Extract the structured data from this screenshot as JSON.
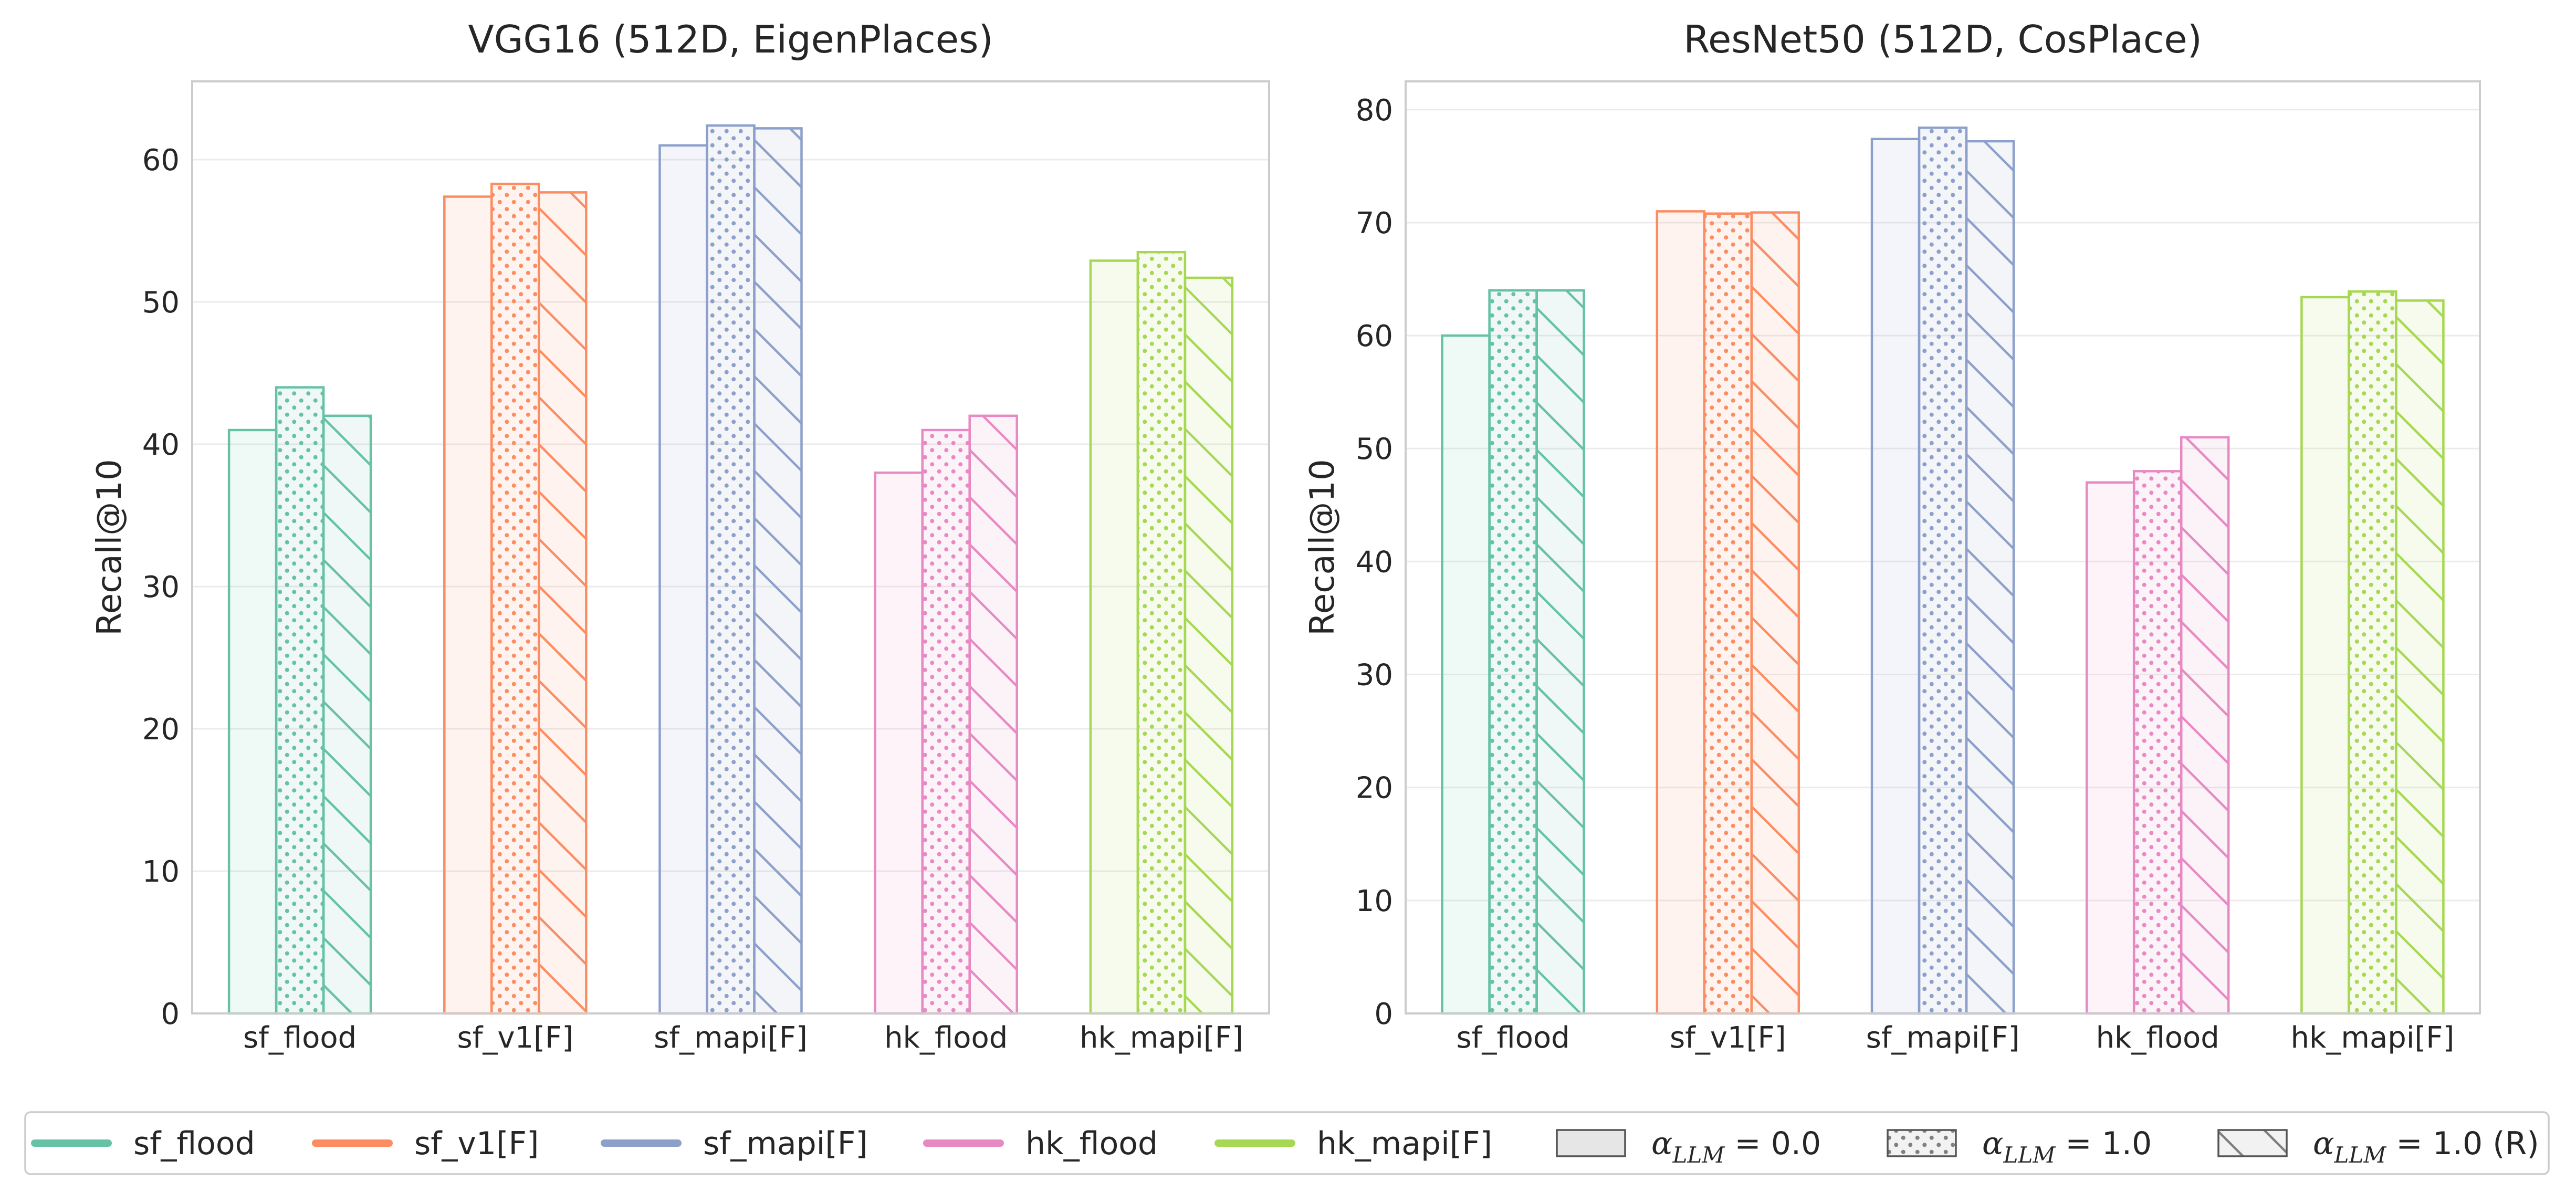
{
  "chart_data": [
    {
      "type": "bar",
      "title": "VGG16 (512D, EigenPlaces)",
      "xlabel": "",
      "ylabel": "Recall@10",
      "ylim": [
        0,
        65.5
      ],
      "yticks": [
        0,
        10,
        20,
        30,
        40,
        50,
        60
      ],
      "categories": [
        "sf_flood",
        "sf_v1[F]",
        "sf_mapi[F]",
        "hk_flood",
        "hk_mapi[F]"
      ],
      "series": [
        {
          "values": [
            41,
            57.4,
            61,
            38,
            52.9
          ]
        },
        {
          "values": [
            44,
            58.3,
            62.4,
            41,
            53.5
          ]
        },
        {
          "values": [
            42,
            57.7,
            62.2,
            42,
            51.7
          ]
        }
      ],
      "grid": "y",
      "legend": "bottom"
    },
    {
      "type": "bar",
      "title": "ResNet50 (512D, CosPlace)",
      "xlabel": "",
      "ylabel": "Recall@10",
      "ylim": [
        0,
        82.5
      ],
      "yticks": [
        0,
        10,
        20,
        30,
        40,
        50,
        60,
        70,
        80
      ],
      "categories": [
        "sf_flood",
        "sf_v1[F]",
        "sf_mapi[F]",
        "hk_flood",
        "hk_mapi[F]"
      ],
      "series": [
        {
          "values": [
            60,
            71,
            77.4,
            47,
            63.4
          ]
        },
        {
          "values": [
            64,
            70.8,
            78.4,
            48,
            63.9
          ]
        },
        {
          "values": [
            64,
            70.9,
            77.2,
            51,
            63.1
          ]
        }
      ],
      "grid": "y",
      "legend": "bottom"
    }
  ],
  "colors": {
    "sf_flood": "#66c2a5",
    "sf_v1[F]": "#fc8d62",
    "sf_mapi[F]": "#8da0cb",
    "hk_flood": "#e78ac3",
    "hk_mapi[F]": "#a6d854"
  },
  "legend": {
    "datasets": [
      "sf_flood",
      "sf_v1[F]",
      "sf_mapi[F]",
      "hk_flood",
      "hk_mapi[F]"
    ],
    "alpha": [
      {
        "symbol": "α",
        "sub": "LLM",
        "eq": " = 0.0",
        "suffix": "",
        "pattern": "none"
      },
      {
        "symbol": "α",
        "sub": "LLM",
        "eq": " = 1.0",
        "suffix": "",
        "pattern": "dots"
      },
      {
        "symbol": "α",
        "sub": "LLM",
        "eq": " = 1.0",
        "suffix": " (R)",
        "pattern": "hatch"
      }
    ]
  }
}
